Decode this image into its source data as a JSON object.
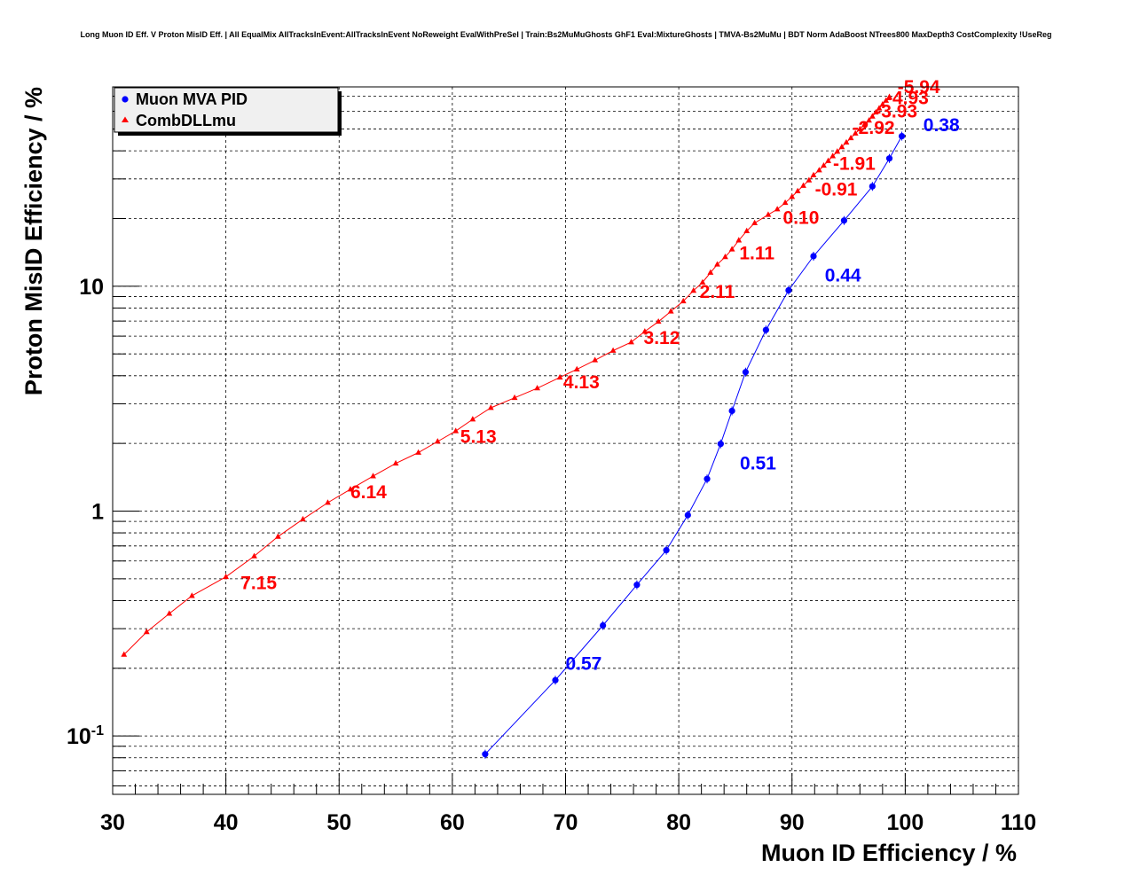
{
  "title": "Long Muon ID Eff. V Proton MisID Eff. | All EqualMix AllTracksInEvent:AllTracksInEvent NoReweight EvalWithPreSel | Train:Bs2MuMuGhosts GhF1 Eval:MixtureGhosts | TMVA-Bs2MuMu | BDT Norm AdaBoost NTrees800 MaxDepth3 CostComplexity !UseReg",
  "colors": {
    "series_mva": "#0000ff",
    "series_dll": "#ff0000",
    "grid": "#000000",
    "legend_bg": "#f0f0f0"
  },
  "chart_data": {
    "type": "scatter",
    "title": "Long Muon ID Eff. V Proton MisID Eff. | All EqualMix AllTracksInEvent:AllTracksInEvent NoReweight EvalWithPreSel | Train:Bs2MuMuGhosts GhF1 Eval:MixtureGhosts | TMVA-Bs2MuMu | BDT Norm AdaBoost NTrees800 MaxDepth3 CostComplexity !UseReg",
    "xlabel": "Muon ID Efficiency / %",
    "ylabel": "Proton MisID Efficiency / %",
    "xlim": [
      30,
      110
    ],
    "ylim": [
      0.055,
      77
    ],
    "yscale": "log",
    "grid": true,
    "legend_position": "top-left",
    "x_ticks": [
      "30",
      "40",
      "50",
      "60",
      "70",
      "80",
      "90",
      "100",
      "110"
    ],
    "y_ticks": [
      {
        "value": 0.1,
        "base": "10",
        "exp": "-1"
      },
      {
        "value": 1,
        "base": "1",
        "exp": ""
      },
      {
        "value": 10,
        "base": "10",
        "exp": ""
      }
    ],
    "series": [
      {
        "name": "Muon MVA PID",
        "marker": "circle",
        "x": [
          62.9,
          69.1,
          73.3,
          76.3,
          78.9,
          80.8,
          82.5,
          83.7,
          84.7,
          85.9,
          87.7,
          89.7,
          91.9,
          94.6,
          97.1,
          98.6,
          99.7
        ],
        "y": [
          0.083,
          0.177,
          0.31,
          0.47,
          0.67,
          0.96,
          1.39,
          1.99,
          2.79,
          4.15,
          6.39,
          9.59,
          13.6,
          19.6,
          27.8,
          37.0,
          46.5
        ],
        "labels": [
          {
            "text": "0.57",
            "x": 71.6,
            "y": 0.197
          },
          {
            "text": "0.51",
            "x": 87.0,
            "y": 1.53
          },
          {
            "text": "0.44",
            "x": 94.5,
            "y": 10.5
          },
          {
            "text": "0.38",
            "x": 103.2,
            "y": 48.8
          }
        ]
      },
      {
        "name": "CombDLLmu",
        "marker": "triangle",
        "x": [
          31.0,
          33.0,
          35.0,
          37.0,
          40.0,
          42.5,
          44.6,
          46.8,
          49.0,
          51.0,
          53.0,
          55.0,
          57.0,
          58.7,
          60.3,
          61.8,
          63.4,
          65.5,
          67.5,
          69.5,
          71.0,
          72.6,
          74.2,
          75.8,
          77.0,
          78.2,
          79.3,
          80.4,
          81.3,
          82.1,
          82.8,
          83.4,
          84.1,
          84.7,
          85.3,
          86.0,
          86.7,
          87.9,
          88.7,
          89.4,
          90.0,
          90.5,
          91.0,
          91.5,
          91.9,
          92.4,
          92.8,
          93.2,
          93.6,
          94.0,
          94.4,
          94.8,
          95.2,
          95.6,
          96.0,
          96.4,
          96.8,
          97.1,
          97.4,
          97.7,
          98.0,
          98.3,
          98.6
        ],
        "y": [
          0.23,
          0.29,
          0.35,
          0.42,
          0.51,
          0.63,
          0.77,
          0.92,
          1.09,
          1.25,
          1.43,
          1.63,
          1.82,
          2.04,
          2.27,
          2.56,
          2.88,
          3.19,
          3.52,
          3.93,
          4.27,
          4.69,
          5.17,
          5.64,
          6.29,
          6.96,
          7.73,
          8.58,
          9.56,
          10.4,
          11.5,
          12.5,
          13.5,
          14.6,
          16.0,
          17.6,
          19.1,
          20.8,
          22.0,
          23.5,
          25.0,
          26.5,
          28.0,
          29.6,
          31.2,
          32.8,
          34.4,
          36.1,
          37.9,
          39.7,
          41.6,
          43.6,
          45.6,
          47.8,
          50.0,
          52.3,
          54.6,
          56.9,
          59.3,
          61.8,
          64.3,
          66.9,
          69.5
        ],
        "labels": [
          {
            "text": "7.15",
            "x": 42.9,
            "y": 0.45
          },
          {
            "text": "6.14",
            "x": 52.6,
            "y": 1.14
          },
          {
            "text": "5.13",
            "x": 62.3,
            "y": 2.01
          },
          {
            "text": "4.13",
            "x": 71.4,
            "y": 3.52
          },
          {
            "text": "3.12",
            "x": 78.5,
            "y": 5.53
          },
          {
            "text": "2.11",
            "x": 83.4,
            "y": 8.87
          },
          {
            "text": "1.11",
            "x": 86.9,
            "y": 13.2
          },
          {
            "text": "0.10",
            "x": 90.8,
            "y": 18.9
          },
          {
            "text": "-0.91",
            "x": 93.9,
            "y": 25.3
          },
          {
            "text": "-1.91",
            "x": 95.5,
            "y": 32.9
          },
          {
            "text": "-2.92",
            "x": 97.2,
            "y": 47.5
          },
          {
            "text": "-3.93",
            "x": 99.2,
            "y": 56.3
          },
          {
            "text": "-4.93",
            "x": 100.2,
            "y": 64.4
          },
          {
            "text": "-5.94",
            "x": 101.2,
            "y": 72.3
          }
        ]
      }
    ]
  }
}
